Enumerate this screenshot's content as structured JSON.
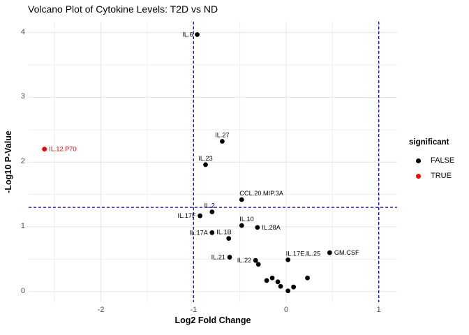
{
  "chart_data": {
    "type": "scatter",
    "title": "Volcano Plot of Cytokine Levels: T2D vs ND",
    "xlabel": "Log2 Fold Change",
    "ylabel": "-Log10 P-Value",
    "x_ticks": [
      -2,
      -1,
      0,
      1
    ],
    "y_ticks": [
      0,
      1,
      2,
      3,
      4
    ],
    "xlim": [
      -2.78,
      1.2
    ],
    "ylim": [
      -0.17,
      4.17
    ],
    "grid": {
      "major_step": 1,
      "minor_step": 0.5,
      "grid_on": true
    },
    "thresholds": {
      "vlines": [
        -1,
        1
      ],
      "hline": 1.3,
      "style": "dashed"
    },
    "legend": {
      "title": "significant",
      "position": "right",
      "items": [
        {
          "label": "FALSE",
          "color": "#000000"
        },
        {
          "label": "TRUE",
          "color": "#ff0000"
        }
      ]
    },
    "colors": {
      "nonsignificant": "#000000",
      "significant": "#ff0000",
      "threshold_line": "#0000ee",
      "grid_major": "#e4e4e4",
      "grid_minor": "#efefef",
      "tick_text": "#4d4d4d"
    },
    "points": [
      {
        "label": "IL.6",
        "x": -0.96,
        "y": 3.97,
        "significant": false,
        "label_pos": "left"
      },
      {
        "label": "IL.12.P70",
        "x": -2.61,
        "y": 2.2,
        "significant": true,
        "label_pos": "right"
      },
      {
        "label": "IL.27",
        "x": -0.69,
        "y": 2.32,
        "significant": false,
        "label_pos": "above"
      },
      {
        "label": "IL.23",
        "x": -0.87,
        "y": 1.96,
        "significant": false,
        "label_pos": "above"
      },
      {
        "label": "CCL.20.MIP.3A",
        "x": -0.48,
        "y": 1.42,
        "significant": false,
        "label_pos": "above-right"
      },
      {
        "label": "IL.2",
        "x": -0.8,
        "y": 1.23,
        "significant": false,
        "label_pos": "above-left"
      },
      {
        "label": "IL.17F",
        "x": -0.93,
        "y": 1.17,
        "significant": false,
        "label_pos": "left"
      },
      {
        "label": "IL.10",
        "x": -0.48,
        "y": 1.02,
        "significant": false,
        "label_pos": "above-right"
      },
      {
        "label": "IL.28A",
        "x": -0.31,
        "y": 0.99,
        "significant": false,
        "label_pos": "right"
      },
      {
        "label": "IL.17A",
        "x": -0.8,
        "y": 0.91,
        "significant": false,
        "label_pos": "left"
      },
      {
        "label": "IL.1B",
        "x": -0.62,
        "y": 0.82,
        "significant": false,
        "label_pos": "above-left"
      },
      {
        "label": "IL.21",
        "x": -0.61,
        "y": 0.53,
        "significant": false,
        "label_pos": "left"
      },
      {
        "label": "IL.22",
        "x": -0.33,
        "y": 0.48,
        "significant": false,
        "label_pos": "left"
      },
      {
        "label": "IL.17E.IL.25",
        "x": 0.02,
        "y": 0.49,
        "significant": false,
        "label_pos": "above-right"
      },
      {
        "label": "GM.CSF",
        "x": 0.47,
        "y": 0.6,
        "significant": false,
        "label_pos": "right"
      },
      {
        "label": "",
        "x": -0.3,
        "y": 0.42,
        "significant": false,
        "label_pos": "none"
      },
      {
        "label": "",
        "x": -0.21,
        "y": 0.17,
        "significant": false,
        "label_pos": "none"
      },
      {
        "label": "",
        "x": -0.15,
        "y": 0.21,
        "significant": false,
        "label_pos": "none"
      },
      {
        "label": "",
        "x": -0.09,
        "y": 0.15,
        "significant": false,
        "label_pos": "none"
      },
      {
        "label": "",
        "x": -0.06,
        "y": 0.08,
        "significant": false,
        "label_pos": "none"
      },
      {
        "label": "",
        "x": 0.02,
        "y": 0.01,
        "significant": false,
        "label_pos": "none"
      },
      {
        "label": "",
        "x": 0.08,
        "y": 0.07,
        "significant": false,
        "label_pos": "none"
      },
      {
        "label": "",
        "x": 0.23,
        "y": 0.21,
        "significant": false,
        "label_pos": "none"
      }
    ]
  }
}
